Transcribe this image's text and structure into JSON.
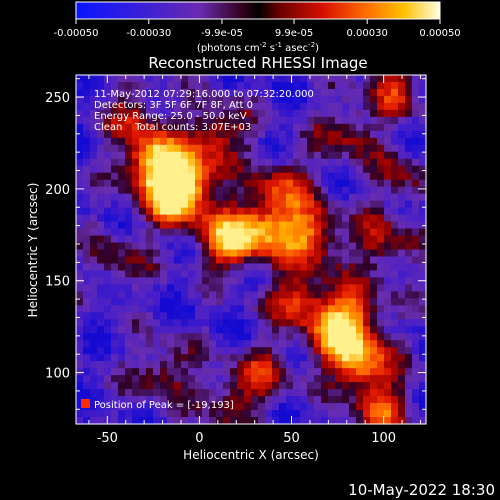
{
  "colorbar": {
    "tick_labels": [
      "-0.00050",
      "-0.00030",
      "-9.9e-05",
      "9.9e-05",
      "0.00030",
      "0.00050"
    ],
    "tick_values": [
      -0.0005,
      -0.0003,
      -9.9e-05,
      9.9e-05,
      0.0003,
      0.0005
    ],
    "range": [
      -0.0005,
      0.0005
    ],
    "unit_label": "(photons cm",
    "unit_exp1": "-2",
    "unit_mid": " s",
    "unit_exp2": "-1",
    "unit_tail": " asec",
    "unit_exp3": "-2",
    "unit_close": ")"
  },
  "chart_data": {
    "type": "heatmap",
    "title": "Reconstructed RHESSI Image",
    "xlabel": "Heliocentric X (arcsec)",
    "ylabel": "Heliocentric Y (arcsec)",
    "xlim": [
      -67,
      123
    ],
    "ylim": [
      72,
      262
    ],
    "x_ticks": [
      -50,
      0,
      50,
      100
    ],
    "y_ticks": [
      100,
      150,
      200,
      250
    ],
    "x_tick_labels": [
      "-50",
      "0",
      "50",
      "100"
    ],
    "y_tick_labels": [
      "100",
      "150",
      "200",
      "250"
    ],
    "colormap": [
      "#1a10c8",
      "#5a2bb8",
      "#4a0f3a",
      "#b80000",
      "#ff6a00",
      "#ffb000",
      "#ffffa0"
    ],
    "annotations": [
      "11-May-2012 07:29:16.000 to 07:32:20.000",
      "Detectors: 3F 5F 6F 7F 8F, Att 0",
      "Energy Range: 25.0 - 50.0 keV",
      "Clean    Total counts: 3.07E+03"
    ],
    "peak_label": "Position of Peak = [-19,193]",
    "peak": [
      -19,
      193
    ],
    "blobs": [
      {
        "x": -25,
        "y": 215,
        "amp": 1.0
      },
      {
        "x": -15,
        "y": 195,
        "amp": 0.95
      },
      {
        "x": -5,
        "y": 205,
        "amp": 0.75
      },
      {
        "x": 15,
        "y": 172,
        "amp": 0.9
      },
      {
        "x": 35,
        "y": 178,
        "amp": 0.75
      },
      {
        "x": 60,
        "y": 175,
        "amp": 0.8
      },
      {
        "x": 45,
        "y": 200,
        "amp": 0.55
      },
      {
        "x": 55,
        "y": 140,
        "amp": 0.65
      },
      {
        "x": 75,
        "y": 120,
        "amp": 0.85
      },
      {
        "x": 88,
        "y": 105,
        "amp": 0.8
      },
      {
        "x": 85,
        "y": 135,
        "amp": 0.55
      },
      {
        "x": 100,
        "y": 80,
        "amp": 0.6
      },
      {
        "x": 35,
        "y": 100,
        "amp": 0.45
      },
      {
        "x": -20,
        "y": 100,
        "amp": 0.45
      },
      {
        "x": 15,
        "y": 85,
        "amp": 0.4
      },
      {
        "x": 10,
        "y": 230,
        "amp": 0.6
      },
      {
        "x": 80,
        "y": 230,
        "amp": 0.45
      },
      {
        "x": 105,
        "y": 255,
        "amp": 0.5
      },
      {
        "x": 100,
        "y": 170,
        "amp": 0.5
      },
      {
        "x": -45,
        "y": 160,
        "amp": 0.35
      },
      {
        "x": -35,
        "y": 240,
        "amp": 0.4
      },
      {
        "x": 110,
        "y": 205,
        "amp": 0.35
      }
    ]
  },
  "footer": {
    "timestamp": "10-May-2022 18:30"
  }
}
